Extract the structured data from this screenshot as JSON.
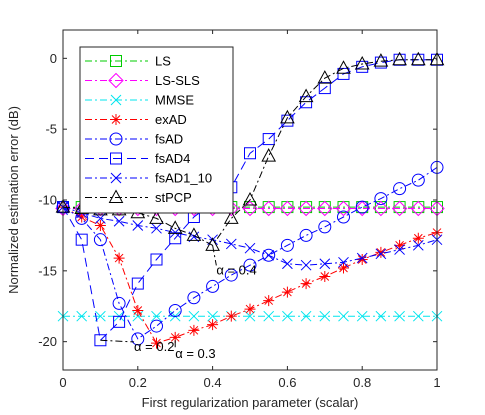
{
  "chart_data": {
    "type": "line",
    "xlabel": "First regularization parameter (scalar)",
    "ylabel": "Normalized estimation error (dB)",
    "xlim": [
      0,
      1
    ],
    "ylim": [
      -22,
      2
    ],
    "xticks": [
      0,
      0.2,
      0.4,
      0.6,
      0.8,
      1
    ],
    "xtick_labels": [
      "0",
      "0.2",
      "0.4",
      "0.6",
      "0.8",
      "1"
    ],
    "yticks": [
      0,
      -5,
      -10,
      -15,
      -20
    ],
    "ytick_labels": [
      "0",
      "-5",
      "-10",
      "-15",
      "-20"
    ],
    "grid": false,
    "legend_position": "top-left",
    "series": [
      {
        "name": "LS",
        "color": "#00cc00",
        "marker": "square",
        "dash": "dashdot",
        "x": [
          0,
          0.05,
          0.1,
          0.15,
          0.2,
          0.25,
          0.3,
          0.35,
          0.4,
          0.45,
          0.5,
          0.55,
          0.6,
          0.65,
          0.7,
          0.75,
          0.8,
          0.85,
          0.9,
          0.95,
          1
        ],
        "y": [
          -10.5,
          -10.5,
          -10.5,
          -10.5,
          -10.5,
          -10.5,
          -10.5,
          -10.5,
          -10.5,
          -10.5,
          -10.5,
          -10.5,
          -10.5,
          -10.5,
          -10.5,
          -10.5,
          -10.5,
          -10.5,
          -10.5,
          -10.5,
          -10.5
        ]
      },
      {
        "name": "LS-SLS",
        "color": "#ff00ff",
        "marker": "diamond",
        "dash": "dashdot",
        "x": [
          0,
          0.05,
          0.1,
          0.15,
          0.2,
          0.25,
          0.3,
          0.35,
          0.4,
          0.45,
          0.5,
          0.55,
          0.6,
          0.65,
          0.7,
          0.75,
          0.8,
          0.85,
          0.9,
          0.95,
          1
        ],
        "y": [
          -10.6,
          -10.6,
          -10.6,
          -10.6,
          -10.6,
          -10.6,
          -10.6,
          -10.6,
          -10.6,
          -10.6,
          -10.6,
          -10.6,
          -10.6,
          -10.6,
          -10.6,
          -10.6,
          -10.6,
          -10.6,
          -10.6,
          -10.6,
          -10.6
        ]
      },
      {
        "name": "MMSE",
        "color": "#00e5ee",
        "marker": "x",
        "dash": "dashdot",
        "x": [
          0,
          0.05,
          0.1,
          0.15,
          0.2,
          0.25,
          0.3,
          0.35,
          0.4,
          0.45,
          0.5,
          0.55,
          0.6,
          0.65,
          0.7,
          0.75,
          0.8,
          0.85,
          0.9,
          0.95,
          1
        ],
        "y": [
          -18.2,
          -18.2,
          -18.2,
          -18.2,
          -18.2,
          -18.2,
          -18.2,
          -18.2,
          -18.2,
          -18.2,
          -18.2,
          -18.2,
          -18.2,
          -18.2,
          -18.2,
          -18.2,
          -18.2,
          -18.2,
          -18.2,
          -18.2,
          -18.2
        ]
      },
      {
        "name": "exAD",
        "color": "#ff0000",
        "marker": "star",
        "dash": "dashdot",
        "x": [
          0,
          0.05,
          0.1,
          0.15,
          0.2,
          0.25,
          0.3,
          0.35,
          0.4,
          0.45,
          0.5,
          0.55,
          0.6,
          0.65,
          0.7,
          0.75,
          0.8,
          0.85,
          0.9,
          0.95,
          1
        ],
        "y": [
          -10.5,
          -11.2,
          -11.8,
          -14.1,
          -17.8,
          -20.1,
          -19.7,
          -19.2,
          -18.8,
          -18.2,
          -17.7,
          -17.1,
          -16.5,
          -15.9,
          -15.4,
          -14.8,
          -14.2,
          -13.7,
          -13.2,
          -12.7,
          -12.3
        ]
      },
      {
        "name": "fsAD",
        "color": "#0000ff",
        "marker": "circle",
        "dash": "dashdot",
        "x": [
          0,
          0.05,
          0.1,
          0.15,
          0.2,
          0.25,
          0.3,
          0.35,
          0.4,
          0.45,
          0.5,
          0.55,
          0.6,
          0.65,
          0.7,
          0.75,
          0.8,
          0.85,
          0.9,
          0.95,
          1
        ],
        "y": [
          -10.5,
          -11.3,
          -12.8,
          -17.3,
          -19.8,
          -18.9,
          -17.8,
          -16.9,
          -16.1,
          -15.3,
          -14.6,
          -13.9,
          -13.2,
          -12.5,
          -11.9,
          -11.2,
          -10.5,
          -9.9,
          -9.2,
          -8.6,
          -7.7
        ]
      },
      {
        "name": "fsAD4",
        "color": "#0000ff",
        "marker": "square",
        "dash": "dashed",
        "x": [
          0,
          0.05,
          0.1,
          0.15,
          0.2,
          0.25,
          0.3,
          0.35,
          0.4,
          0.45,
          0.5,
          0.55,
          0.6,
          0.65,
          0.7,
          0.75,
          0.8,
          0.85,
          0.9,
          0.95,
          1
        ],
        "y": [
          -10.5,
          -12.8,
          -19.9,
          -18.6,
          -15.9,
          -14.2,
          -12.7,
          -11.2,
          -10.2,
          -9.1,
          -6.7,
          -5.7,
          -4.4,
          -3.1,
          -2.1,
          -1.1,
          -0.6,
          -0.3,
          -0.1,
          -0.1,
          -0.1
        ]
      },
      {
        "name": "fsAD1_10",
        "color": "#0000ff",
        "marker": "x",
        "dash": "dashdot",
        "x": [
          0,
          0.05,
          0.1,
          0.15,
          0.2,
          0.25,
          0.3,
          0.35,
          0.4,
          0.45,
          0.5,
          0.55,
          0.6,
          0.65,
          0.7,
          0.75,
          0.8,
          0.85,
          0.9,
          0.95,
          1
        ],
        "y": [
          -10.5,
          -10.9,
          -11.3,
          -11.5,
          -11.8,
          -12.0,
          -12.3,
          -12.6,
          -12.8,
          -13.1,
          -13.4,
          -13.9,
          -14.5,
          -14.6,
          -14.5,
          -14.4,
          -14.1,
          -13.8,
          -13.5,
          -13.2,
          -12.8
        ]
      },
      {
        "name": "stPCP",
        "color": "#000000",
        "marker": "triangle",
        "dash": "dashdot",
        "x": [
          0,
          0.05,
          0.1,
          0.15,
          0.2,
          0.25,
          0.3,
          0.35,
          0.4,
          0.45,
          0.5,
          0.55,
          0.6,
          0.65,
          0.7,
          0.75,
          0.8,
          0.85,
          0.9,
          0.95,
          1
        ],
        "y": [
          -10.5,
          -10.6,
          -10.7,
          -10.7,
          -10.9,
          -11.3,
          -12.0,
          -12.5,
          -13.2,
          -11.3,
          -10.0,
          -6.9,
          -4.2,
          -2.7,
          -1.4,
          -0.7,
          -0.4,
          -0.2,
          -0.1,
          -0.1,
          -0.1
        ]
      }
    ],
    "annotations": [
      {
        "text": "α = 0.4",
        "x": 0.4,
        "y": -13.2,
        "label_x": 0.41,
        "label_y": -14.9,
        "color": "#000000"
      },
      {
        "text": "α = 0.2",
        "x": 0.1,
        "y": -19.9,
        "label_x": 0.19,
        "label_y": -20.3,
        "color": "#000000"
      },
      {
        "text": "α = 0.3",
        "x": 0.3,
        "y": -19.9,
        "label_x": 0.3,
        "label_y": -20.8,
        "color": "#000000"
      }
    ]
  }
}
